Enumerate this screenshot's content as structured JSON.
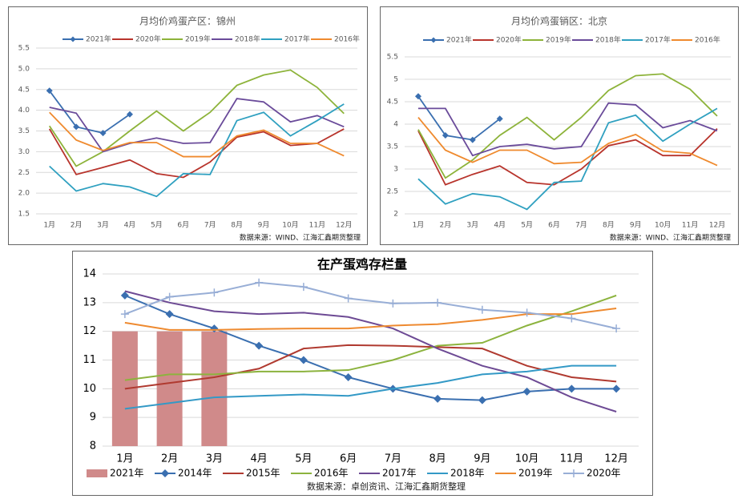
{
  "chart_data": [
    {
      "type": "line",
      "title": "月均价鸡蛋产区：锦州",
      "source": "数据来源：WIND、江海汇鑫期货整理",
      "categories": [
        "1月",
        "2月",
        "3月",
        "4月",
        "5月",
        "6月",
        "7月",
        "8月",
        "9月",
        "10月",
        "11月",
        "12月"
      ],
      "ylim": [
        1.5,
        5.5
      ],
      "yticks": [
        1.5,
        {
          "value": 2,
          "label": "2.0"
        },
        2.5,
        {
          "value": 3,
          "label": "3.0"
        },
        3.5,
        {
          "value": 4,
          "label": "4.0"
        },
        4.5,
        {
          "value": 5,
          "label": "5.0"
        },
        5.5
      ],
      "grid": true,
      "series": [
        {
          "name": "2021年",
          "color": "#3a6fb0",
          "marker": "diamond",
          "values": [
            4.47,
            3.6,
            3.45,
            3.9,
            null,
            null,
            null,
            null,
            null,
            null,
            null,
            null
          ]
        },
        {
          "name": "2020年",
          "color": "#b8342c",
          "values": [
            3.55,
            2.45,
            2.62,
            2.8,
            2.47,
            2.38,
            2.75,
            3.35,
            3.48,
            3.15,
            3.2,
            3.55
          ]
        },
        {
          "name": "2019年",
          "color": "#8db33a",
          "values": [
            3.62,
            2.65,
            3.0,
            3.5,
            3.98,
            3.5,
            3.95,
            4.6,
            4.85,
            4.97,
            4.55,
            3.92
          ]
        },
        {
          "name": "2018年",
          "color": "#6a4b9a",
          "values": [
            4.07,
            3.93,
            3.0,
            3.2,
            3.33,
            3.2,
            3.22,
            4.28,
            4.2,
            3.72,
            3.87,
            3.6
          ]
        },
        {
          "name": "2017年",
          "color": "#2fa0c0",
          "values": [
            2.65,
            2.05,
            2.23,
            2.15,
            1.92,
            2.47,
            2.45,
            3.75,
            3.95,
            3.38,
            3.75,
            4.15
          ]
        },
        {
          "name": "2016年",
          "color": "#ef8a2e",
          "values": [
            3.95,
            3.28,
            3.03,
            3.22,
            3.22,
            2.88,
            2.88,
            3.38,
            3.52,
            3.2,
            3.2,
            2.9
          ]
        }
      ]
    },
    {
      "type": "line",
      "title": "月均价鸡蛋销区：北京",
      "source": "数据来源：WIND、江海汇鑫期货整理",
      "categories": [
        "1月",
        "2月",
        "3月",
        "4月",
        "5月",
        "6月",
        "7月",
        "8月",
        "9月",
        "10月",
        "11月",
        "12月"
      ],
      "ylim": [
        2,
        5.5
      ],
      "yticks": [
        2,
        2.5,
        3,
        3.5,
        4,
        4.5,
        5,
        5.5
      ],
      "grid": true,
      "series": [
        {
          "name": "2021年",
          "color": "#3a6fb0",
          "marker": "diamond",
          "values": [
            4.62,
            3.75,
            3.65,
            4.12,
            null,
            null,
            null,
            null,
            null,
            null,
            null,
            null
          ]
        },
        {
          "name": "2020年",
          "color": "#b8342c",
          "values": [
            3.85,
            2.65,
            2.88,
            3.07,
            2.7,
            2.65,
            3.0,
            3.52,
            3.65,
            3.3,
            3.3,
            3.9
          ]
        },
        {
          "name": "2019年",
          "color": "#8db33a",
          "values": [
            3.88,
            2.8,
            3.2,
            3.75,
            4.15,
            3.65,
            4.15,
            4.75,
            5.08,
            5.12,
            4.78,
            4.18
          ]
        },
        {
          "name": "2018年",
          "color": "#6a4b9a",
          "values": [
            4.35,
            4.35,
            3.3,
            3.5,
            3.55,
            3.45,
            3.5,
            4.47,
            4.43,
            3.92,
            4.08,
            3.85
          ]
        },
        {
          "name": "2017年",
          "color": "#2fa0c0",
          "values": [
            2.78,
            2.22,
            2.45,
            2.38,
            2.1,
            2.7,
            2.73,
            4.03,
            4.2,
            3.62,
            4.0,
            4.35
          ]
        },
        {
          "name": "2016年",
          "color": "#ef8a2e",
          "values": [
            4.15,
            3.42,
            3.15,
            3.42,
            3.42,
            3.12,
            3.15,
            3.57,
            3.77,
            3.4,
            3.35,
            3.08
          ]
        }
      ]
    },
    {
      "type": "combo",
      "title": "在产蛋鸡存栏量",
      "source": "数据来源：卓创资讯、江海汇鑫期货整理",
      "categories": [
        "1月",
        "2月",
        "3月",
        "4月",
        "5月",
        "6月",
        "7月",
        "8月",
        "9月",
        "10月",
        "11月",
        "12月"
      ],
      "ylim": [
        8,
        14
      ],
      "yticks": [
        8,
        9,
        10,
        11,
        12,
        13,
        14
      ],
      "grid": true,
      "series": [
        {
          "name": "2021年",
          "color": "#d08a8a",
          "style": "bar",
          "values": [
            12,
            12,
            12,
            null,
            null,
            null,
            null,
            null,
            null,
            null,
            null,
            null
          ]
        },
        {
          "name": "2014年",
          "color": "#3a6fb0",
          "marker": "diamond",
          "values": [
            13.25,
            12.6,
            12.1,
            11.5,
            11.0,
            10.4,
            10.0,
            9.65,
            9.6,
            9.9,
            10.0,
            10.0
          ]
        },
        {
          "name": "2015年",
          "color": "#b03a30",
          "values": [
            10.0,
            10.2,
            10.4,
            10.7,
            11.4,
            11.52,
            11.5,
            11.45,
            11.4,
            10.8,
            10.4,
            10.25
          ]
        },
        {
          "name": "2016年",
          "color": "#8cb33e",
          "values": [
            10.3,
            10.5,
            10.5,
            10.6,
            10.6,
            10.65,
            11.0,
            11.5,
            11.6,
            12.2,
            12.7,
            13.25
          ]
        },
        {
          "name": "2017年",
          "color": "#6d4a94",
          "values": [
            13.4,
            13.0,
            12.7,
            12.6,
            12.65,
            12.5,
            12.1,
            11.4,
            10.8,
            10.4,
            9.7,
            9.2
          ]
        },
        {
          "name": "2018年",
          "color": "#3399c6",
          "values": [
            9.3,
            9.5,
            9.7,
            9.75,
            9.8,
            9.75,
            10.0,
            10.2,
            10.5,
            10.6,
            10.8,
            10.8
          ]
        },
        {
          "name": "2019年",
          "color": "#ee8a30",
          "values": [
            12.3,
            12.05,
            12.05,
            12.08,
            12.1,
            12.1,
            12.2,
            12.25,
            12.4,
            12.6,
            12.6,
            12.8
          ]
        },
        {
          "name": "2020年",
          "color": "#98aed6",
          "marker": "plus",
          "values": [
            12.6,
            13.2,
            13.35,
            13.7,
            13.55,
            13.15,
            12.97,
            13.0,
            12.75,
            12.65,
            12.45,
            12.1
          ]
        }
      ]
    }
  ]
}
